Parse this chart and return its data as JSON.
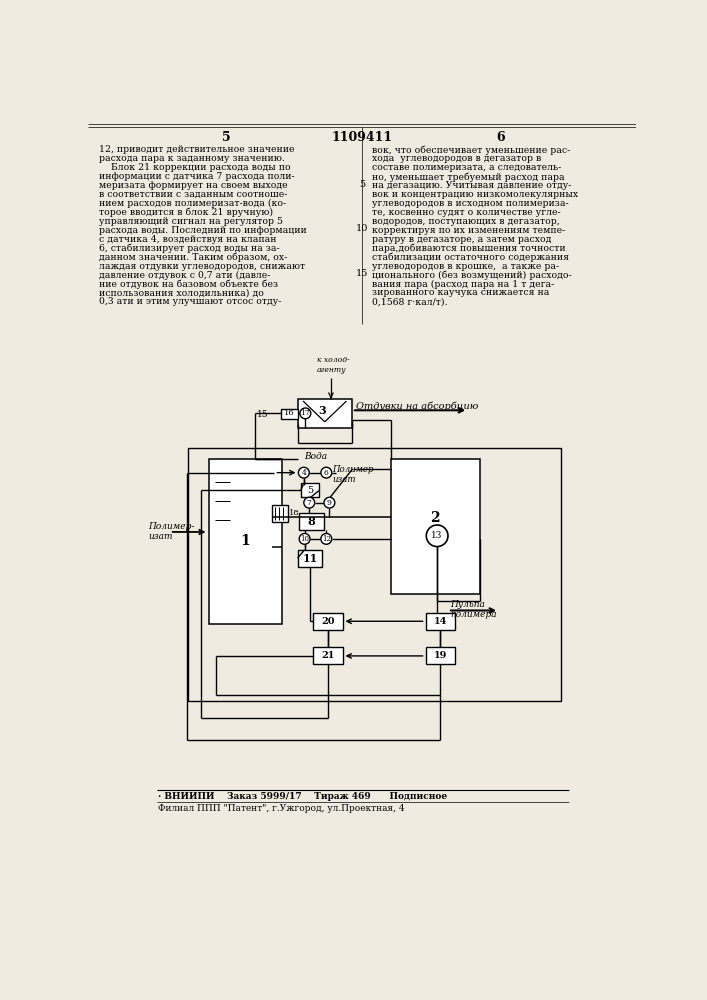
{
  "bg_color": "#f0ebe0",
  "page_title": "1109411",
  "page_left": "5",
  "page_right": "6",
  "footer1": "· ВНИИПИ    Заказ 5999/17    Тираж 469      Подписное",
  "footer2": "Филиал ППП \"Патент\", г.Ужгород, ул.Проектная, 4",
  "col1": [
    "12, приводит действительное значение",
    "расхода пара к заданному значению.",
    "    Блок 21 коррекции расхода воды по",
    "информации с датчика 7 расхода поли-",
    "меризата формирует на своем выходе",
    "в соответствии с заданным соотноше-",
    "нием расходов полимеризат-вода (ко-",
    "торое вводится в блок 21 вручную)",
    "управляющий сигнал на регулятор 5",
    "расхода воды. Последний по информации",
    "с датчика 4, воздействуя на клапан",
    "6, стабилизирует расход воды на за-",
    "данном значении. Таким образом, ох-",
    "лаждая отдувки углеводородов, снижают",
    "давление отдувок с 0,7 ати (давле-",
    "ние отдувок на базовом объекте без",
    "использования холодильника) до",
    "0,3 ати и этим улучшают отсос отду-"
  ],
  "col2": [
    "вок, что обеспечивает уменьшение рас-",
    "хода  углеводородов в дегазатор в",
    "составе полимеризата, а следователь-",
    "но, уменьшает требуемый расход пара",
    "на дегазацию. Учитывая давление отду-",
    "вок и концентрацию низкомолекулярных",
    "углеводородов в исходном полимериза-",
    "те, косвенно судят о количестве угле-",
    "водородов, поступающих в дегазатор,",
    "корректируя по их изменениям темпе-",
    "ратуру в дегазаторе, а затем расход",
    "пара,добиваются повышения точности",
    "стабилизации остаточного содержания",
    "углеводородов в крошке,  а также ра-",
    "ционального (без возмущений) расходо-",
    "вания пара (расход пара на 1 т дега-",
    "зированного каучука снижается на",
    "0,1568 г·кал/т)."
  ]
}
